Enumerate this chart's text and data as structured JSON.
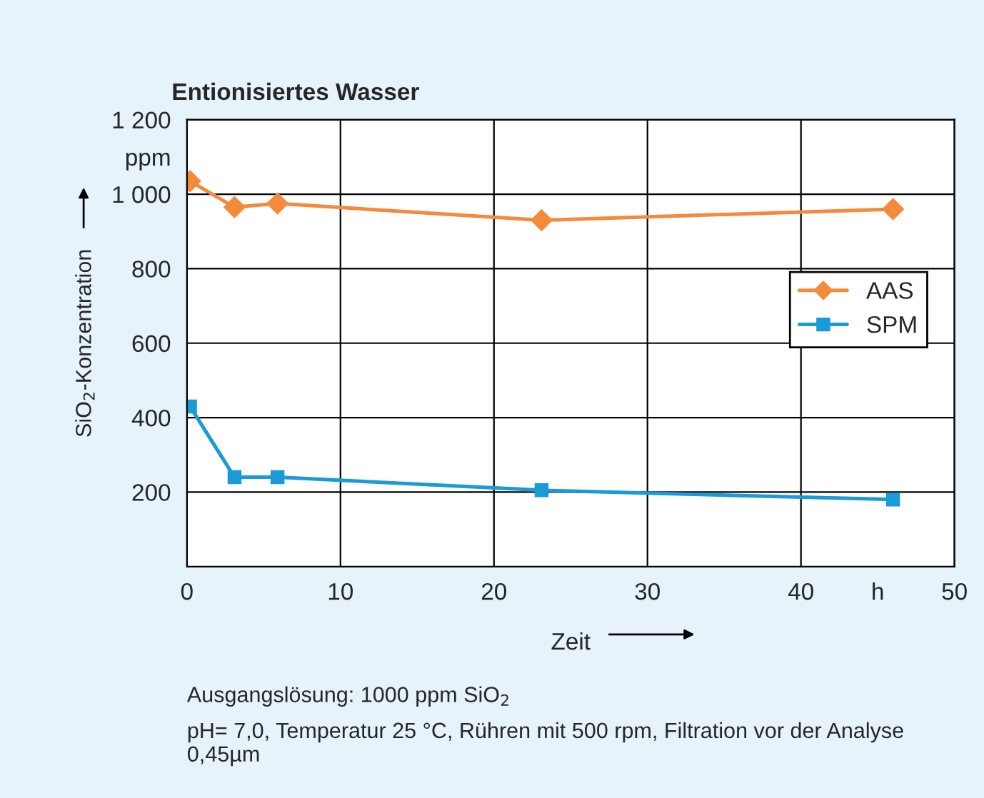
{
  "chart_data": {
    "type": "line",
    "title": "Entionisiertes Wasser",
    "xlabel": "Zeit",
    "ylabel": "SiO$_{2}$-Konzentration",
    "series": [
      {
        "name": "AAS",
        "color": "#f58a3c",
        "marker": "diamond",
        "x": [
          0.2,
          3.1,
          5.9,
          23.1,
          46
        ],
        "values": [
          1035,
          965,
          975,
          930,
          960
        ]
      },
      {
        "name": "SPM",
        "color": "#1a9ad6",
        "marker": "square",
        "x": [
          0.2,
          3.1,
          5.9,
          23.1,
          46
        ],
        "values": [
          430,
          240,
          240,
          205,
          180
        ]
      }
    ],
    "xlim": [
      0,
      50
    ],
    "xticks": [
      0,
      10,
      20,
      30,
      40,
      {
        "value": 45,
        "label": "h"
      },
      50
    ],
    "ylim": [
      0,
      1200
    ],
    "yticks": [
      200,
      400,
      600,
      800,
      {
        "value": 1000,
        "label": "1 000"
      },
      {
        "value": 1100,
        "label": "ppm"
      },
      {
        "value": 1200,
        "label": "1 200"
      }
    ],
    "grid": true,
    "legend": "right",
    "annotations": [
      "Ausgangslösung: 1000 ppm SiO$_{2}$",
      "pH= 7,0, Temperatur 25 °C, Rühren mit 500 rpm, Filtration vor der Analyse 0,45µm"
    ]
  }
}
